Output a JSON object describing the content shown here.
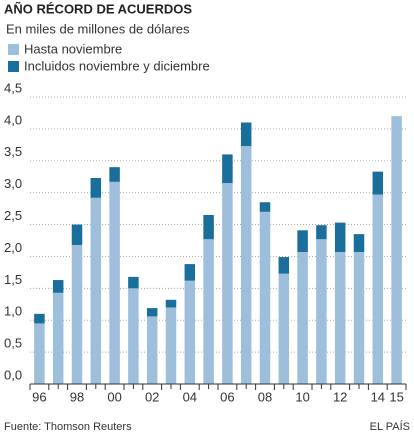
{
  "chart_data": {
    "type": "stacked_bar",
    "title": "AÑO RÉCORD DE ACUERDOS",
    "subtitle": "En miles de millones de dólares",
    "categories": [
      "96",
      null,
      "98",
      null,
      "00",
      null,
      "02",
      null,
      "04",
      null,
      "06",
      null,
      "08",
      null,
      "10",
      null,
      "12",
      null,
      "14",
      "15"
    ],
    "series": [
      {
        "name": "Hasta noviembre",
        "color": "#9dbfdc",
        "values": [
          0.95,
          1.43,
          2.18,
          2.92,
          3.17,
          1.5,
          1.06,
          1.2,
          1.62,
          2.27,
          3.15,
          3.73,
          2.7,
          1.73,
          2.07,
          2.27,
          2.07,
          2.07,
          2.97,
          4.2
        ]
      },
      {
        "name": "Incluidos noviembre y diciembre",
        "color": "#1a6e9c",
        "values": [
          0.15,
          0.2,
          0.32,
          0.31,
          0.23,
          0.18,
          0.13,
          0.12,
          0.26,
          0.38,
          0.45,
          0.37,
          0.15,
          0.26,
          0.34,
          0.22,
          0.46,
          0.28,
          0.36,
          0
        ]
      }
    ],
    "ylim": [
      0,
      4.5
    ],
    "yticks": [
      {
        "value": 0,
        "label": "0,0"
      },
      {
        "value": 0.5,
        "label": "0,5"
      },
      {
        "value": 1,
        "label": "1,0"
      },
      {
        "value": 1.5,
        "label": "1,5"
      },
      {
        "value": 2,
        "label": "2,0"
      },
      {
        "value": 2.5,
        "label": "2,5"
      },
      {
        "value": 3,
        "label": "3,0"
      },
      {
        "value": 3.5,
        "label": "3,5"
      },
      {
        "value": 4,
        "label": "4,0"
      },
      {
        "value": 4.5,
        "label": "4,5"
      }
    ],
    "grid": true,
    "source": "Fuente: Thomson Reuters",
    "credit": "EL PAÍS"
  }
}
